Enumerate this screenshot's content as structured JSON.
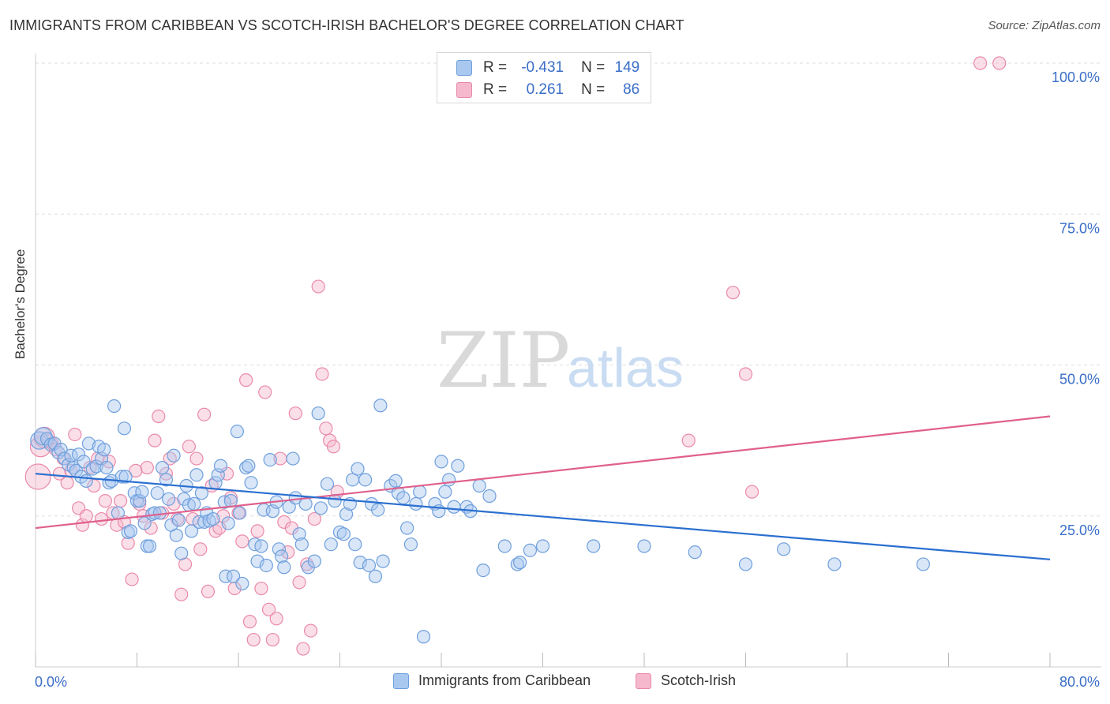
{
  "title": "IMMIGRANTS FROM CARIBBEAN VS SCOTCH-IRISH BACHELOR'S DEGREE CORRELATION CHART",
  "source": "Source: ZipAtlas.com",
  "watermark": {
    "zip": "ZIP",
    "atlas": "atlas"
  },
  "legend": [
    {
      "r_label": "R =",
      "r": "-0.431",
      "n_label": "N =",
      "n": "149"
    },
    {
      "r_label": "R =",
      "r": "0.261",
      "n_label": "N =",
      "n": "86"
    }
  ],
  "colors": {
    "blue_fill": "#a9c8f0",
    "blue_stroke": "#6f9fdc",
    "blue_line": "#2a6fd0",
    "pink_fill": "#f6b8cc",
    "pink_stroke": "#e98aaa",
    "pink_line": "#e0608c",
    "axis_text": "#3a6ec7",
    "grid": "#dddddd"
  },
  "chart_data": {
    "type": "scatter",
    "title": "IMMIGRANTS FROM CARIBBEAN VS SCOTCH-IRISH BACHELOR'S DEGREE CORRELATION CHART",
    "xlabel": "",
    "ylabel": "Bachelor's Degree",
    "xlim": [
      0,
      80
    ],
    "ylim": [
      0,
      100
    ],
    "x_tick_labels": [
      "0.0%",
      "80.0%"
    ],
    "y_tick_labels": [
      "25.0%",
      "50.0%",
      "75.0%",
      "100.0%"
    ],
    "y_ticks": [
      25,
      50,
      75,
      100
    ],
    "grid": "horizontal dashed",
    "legend_position": "bottom",
    "series": [
      {
        "name": "Immigrants from Caribbean",
        "color": "blue",
        "trend": {
          "x": [
            0,
            80
          ],
          "y": [
            32.0,
            17.8
          ]
        },
        "points": [
          [
            0.3,
            37.5
          ],
          [
            0.6,
            38.2
          ],
          [
            0.9,
            37.8
          ],
          [
            1.2,
            36.8
          ],
          [
            1.5,
            37.0
          ],
          [
            1.8,
            35.5
          ],
          [
            2.0,
            36.0
          ],
          [
            2.3,
            34.5
          ],
          [
            2.6,
            33.5
          ],
          [
            2.8,
            35.0
          ],
          [
            3.0,
            33.0
          ],
          [
            3.2,
            32.5
          ],
          [
            3.4,
            35.2
          ],
          [
            3.6,
            31.5
          ],
          [
            3.8,
            34.0
          ],
          [
            4.0,
            30.8
          ],
          [
            4.2,
            37.0
          ],
          [
            4.5,
            32.8
          ],
          [
            4.8,
            33.2
          ],
          [
            5.0,
            36.5
          ],
          [
            5.2,
            34.5
          ],
          [
            5.4,
            36.0
          ],
          [
            5.6,
            33.0
          ],
          [
            5.8,
            30.5
          ],
          [
            6.0,
            30.8
          ],
          [
            6.2,
            43.2
          ],
          [
            6.5,
            25.5
          ],
          [
            6.8,
            31.5
          ],
          [
            7.0,
            39.5
          ],
          [
            7.1,
            31.5
          ],
          [
            7.3,
            22.3
          ],
          [
            7.5,
            22.5
          ],
          [
            7.8,
            28.8
          ],
          [
            8.0,
            27.5
          ],
          [
            8.2,
            27.5
          ],
          [
            8.4,
            29.0
          ],
          [
            8.6,
            23.8
          ],
          [
            8.8,
            20.0
          ],
          [
            9.0,
            20.0
          ],
          [
            9.2,
            25.3
          ],
          [
            9.4,
            25.5
          ],
          [
            9.6,
            28.8
          ],
          [
            9.8,
            25.5
          ],
          [
            10.0,
            33.0
          ],
          [
            10.3,
            31.0
          ],
          [
            10.5,
            27.8
          ],
          [
            10.7,
            23.5
          ],
          [
            10.9,
            35.0
          ],
          [
            11.1,
            21.8
          ],
          [
            11.3,
            24.3
          ],
          [
            11.5,
            18.8
          ],
          [
            11.7,
            27.8
          ],
          [
            11.9,
            30.0
          ],
          [
            12.1,
            26.8
          ],
          [
            12.3,
            22.5
          ],
          [
            12.5,
            27.0
          ],
          [
            12.7,
            31.8
          ],
          [
            12.9,
            24.0
          ],
          [
            13.1,
            28.8
          ],
          [
            13.3,
            24.0
          ],
          [
            13.5,
            25.5
          ],
          [
            13.7,
            24.2
          ],
          [
            14.0,
            24.5
          ],
          [
            14.2,
            30.5
          ],
          [
            14.4,
            31.8
          ],
          [
            14.6,
            33.3
          ],
          [
            14.9,
            27.3
          ],
          [
            15.0,
            15.0
          ],
          [
            15.2,
            23.8
          ],
          [
            15.4,
            27.5
          ],
          [
            15.6,
            15.0
          ],
          [
            15.9,
            39.0
          ],
          [
            16.1,
            25.5
          ],
          [
            16.3,
            13.8
          ],
          [
            16.6,
            33.0
          ],
          [
            16.8,
            33.3
          ],
          [
            17.0,
            30.5
          ],
          [
            17.3,
            20.3
          ],
          [
            17.5,
            17.5
          ],
          [
            17.8,
            20.0
          ],
          [
            18.0,
            26.0
          ],
          [
            18.2,
            16.8
          ],
          [
            18.5,
            34.3
          ],
          [
            18.7,
            25.8
          ],
          [
            19.0,
            27.3
          ],
          [
            19.2,
            19.5
          ],
          [
            19.4,
            18.3
          ],
          [
            19.6,
            16.5
          ],
          [
            20.0,
            26.5
          ],
          [
            20.3,
            34.5
          ],
          [
            20.5,
            28.0
          ],
          [
            20.8,
            22.0
          ],
          [
            21.0,
            20.3
          ],
          [
            21.3,
            27.0
          ],
          [
            21.5,
            16.5
          ],
          [
            22.0,
            17.5
          ],
          [
            22.3,
            42.0
          ],
          [
            22.5,
            26.3
          ],
          [
            23.0,
            30.3
          ],
          [
            23.3,
            20.3
          ],
          [
            23.6,
            27.5
          ],
          [
            24.0,
            22.3
          ],
          [
            24.3,
            22.0
          ],
          [
            24.5,
            25.3
          ],
          [
            24.8,
            27.0
          ],
          [
            25.0,
            31.0
          ],
          [
            25.2,
            20.3
          ],
          [
            25.4,
            32.8
          ],
          [
            25.6,
            17.3
          ],
          [
            26.0,
            31.0
          ],
          [
            26.3,
            16.8
          ],
          [
            26.5,
            27.0
          ],
          [
            26.8,
            15.0
          ],
          [
            27.0,
            26.0
          ],
          [
            27.2,
            43.3
          ],
          [
            27.4,
            17.5
          ],
          [
            28.0,
            30.0
          ],
          [
            28.4,
            30.8
          ],
          [
            28.6,
            28.8
          ],
          [
            29.0,
            28.0
          ],
          [
            29.3,
            23.0
          ],
          [
            29.6,
            20.3
          ],
          [
            30.0,
            27.0
          ],
          [
            30.3,
            29.0
          ],
          [
            30.6,
            5.0
          ],
          [
            31.5,
            27.0
          ],
          [
            31.8,
            25.8
          ],
          [
            32.0,
            34.0
          ],
          [
            32.3,
            29.0
          ],
          [
            32.6,
            31.0
          ],
          [
            33.0,
            26.5
          ],
          [
            33.3,
            33.3
          ],
          [
            34.0,
            26.5
          ],
          [
            34.3,
            25.8
          ],
          [
            35.0,
            30.0
          ],
          [
            35.3,
            16.0
          ],
          [
            35.8,
            28.3
          ],
          [
            37.0,
            20.0
          ],
          [
            38.0,
            17.0
          ],
          [
            38.2,
            17.3
          ],
          [
            39.0,
            19.3
          ],
          [
            40.0,
            20.0
          ],
          [
            44.0,
            20.0
          ],
          [
            48.0,
            20.0
          ],
          [
            52.0,
            19.0
          ],
          [
            56.0,
            17.0
          ],
          [
            59.0,
            19.5
          ],
          [
            63.0,
            17.0
          ],
          [
            70.0,
            17.0
          ]
        ]
      },
      {
        "name": "Scotch-Irish",
        "color": "pink",
        "trend": {
          "x": [
            0,
            80
          ],
          "y": [
            23.0,
            41.5
          ]
        },
        "points": [
          [
            0.2,
            31.5
          ],
          [
            0.4,
            36.5
          ],
          [
            0.7,
            38.0
          ],
          [
            1.0,
            37.5
          ],
          [
            1.3,
            37.0
          ],
          [
            1.6,
            36.0
          ],
          [
            1.9,
            32.0
          ],
          [
            2.2,
            34.5
          ],
          [
            2.5,
            30.5
          ],
          [
            2.8,
            32.5
          ],
          [
            3.1,
            38.5
          ],
          [
            3.4,
            26.3
          ],
          [
            3.7,
            23.5
          ],
          [
            4.0,
            25.0
          ],
          [
            4.3,
            33.0
          ],
          [
            4.6,
            30.0
          ],
          [
            4.9,
            34.5
          ],
          [
            5.2,
            24.5
          ],
          [
            5.5,
            27.5
          ],
          [
            5.8,
            34.0
          ],
          [
            6.1,
            25.5
          ],
          [
            6.4,
            23.5
          ],
          [
            6.7,
            27.5
          ],
          [
            7.0,
            24.0
          ],
          [
            7.3,
            20.5
          ],
          [
            7.6,
            14.5
          ],
          [
            7.9,
            32.5
          ],
          [
            8.2,
            27.0
          ],
          [
            8.5,
            25.0
          ],
          [
            8.8,
            33.0
          ],
          [
            9.1,
            23.0
          ],
          [
            9.4,
            37.5
          ],
          [
            9.7,
            41.5
          ],
          [
            10.0,
            25.5
          ],
          [
            10.3,
            32.0
          ],
          [
            10.6,
            34.5
          ],
          [
            10.9,
            27.0
          ],
          [
            11.2,
            24.5
          ],
          [
            11.5,
            12.0
          ],
          [
            11.8,
            17.0
          ],
          [
            12.1,
            36.5
          ],
          [
            12.4,
            24.5
          ],
          [
            12.7,
            34.5
          ],
          [
            13.0,
            19.5
          ],
          [
            13.3,
            41.8
          ],
          [
            13.6,
            12.5
          ],
          [
            13.9,
            30.0
          ],
          [
            14.2,
            22.5
          ],
          [
            14.5,
            23.0
          ],
          [
            14.8,
            25.0
          ],
          [
            15.1,
            32.0
          ],
          [
            15.4,
            28.0
          ],
          [
            15.7,
            13.0
          ],
          [
            16.0,
            25.5
          ],
          [
            16.3,
            20.8
          ],
          [
            16.6,
            47.5
          ],
          [
            16.9,
            7.5
          ],
          [
            17.2,
            4.5
          ],
          [
            17.5,
            22.5
          ],
          [
            17.8,
            13.0
          ],
          [
            18.1,
            45.5
          ],
          [
            18.4,
            9.5
          ],
          [
            18.7,
            4.5
          ],
          [
            19.0,
            8.0
          ],
          [
            19.3,
            34.5
          ],
          [
            19.6,
            24.0
          ],
          [
            19.9,
            19.0
          ],
          [
            20.2,
            23.0
          ],
          [
            20.5,
            42.0
          ],
          [
            20.8,
            14.0
          ],
          [
            21.1,
            3.0
          ],
          [
            21.4,
            17.0
          ],
          [
            21.7,
            6.0
          ],
          [
            22.0,
            24.5
          ],
          [
            22.3,
            63.0
          ],
          [
            22.6,
            48.5
          ],
          [
            22.9,
            39.5
          ],
          [
            23.2,
            37.5
          ],
          [
            23.5,
            36.5
          ],
          [
            23.8,
            29.0
          ],
          [
            74.5,
            100.0
          ],
          [
            76.0,
            100.0
          ],
          [
            56.0,
            48.5
          ],
          [
            55.0,
            62.0
          ],
          [
            51.5,
            37.5
          ],
          [
            56.5,
            29.0
          ]
        ]
      }
    ]
  },
  "bottom_legend": [
    "Immigrants from Caribbean",
    "Scotch-Irish"
  ]
}
